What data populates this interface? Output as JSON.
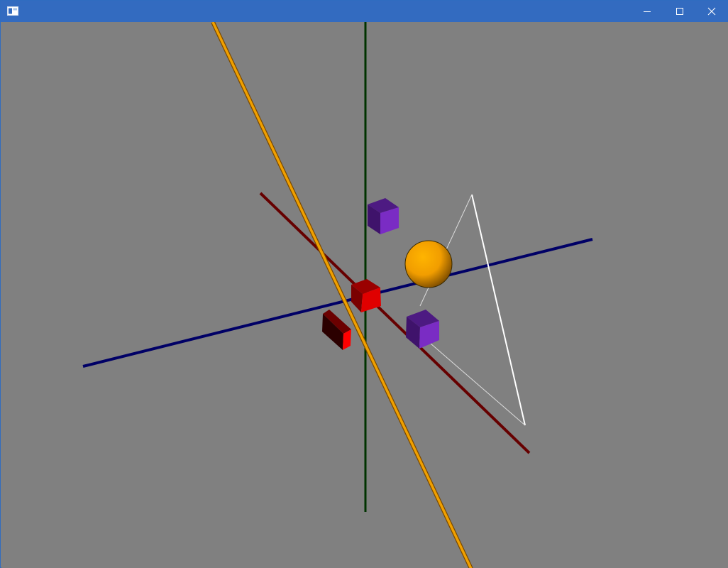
{
  "window": {
    "title": "",
    "icon": "app-window-icon",
    "titlebar_color": "#336bc0",
    "controls": {
      "minimize": "minimize-icon",
      "maximize": "maximize-icon",
      "close": "close-icon"
    }
  },
  "scene": {
    "background": "#808080",
    "colors": {
      "x_axis": "#000066",
      "y_axis": "#003300",
      "z_axis": "#660000",
      "diagonal_line": "#f0a000",
      "cube_purple": "#7b2fc0",
      "cube_red": "#d40000",
      "sphere": "#f5a300",
      "wire_triangle": "#ffffff"
    }
  }
}
